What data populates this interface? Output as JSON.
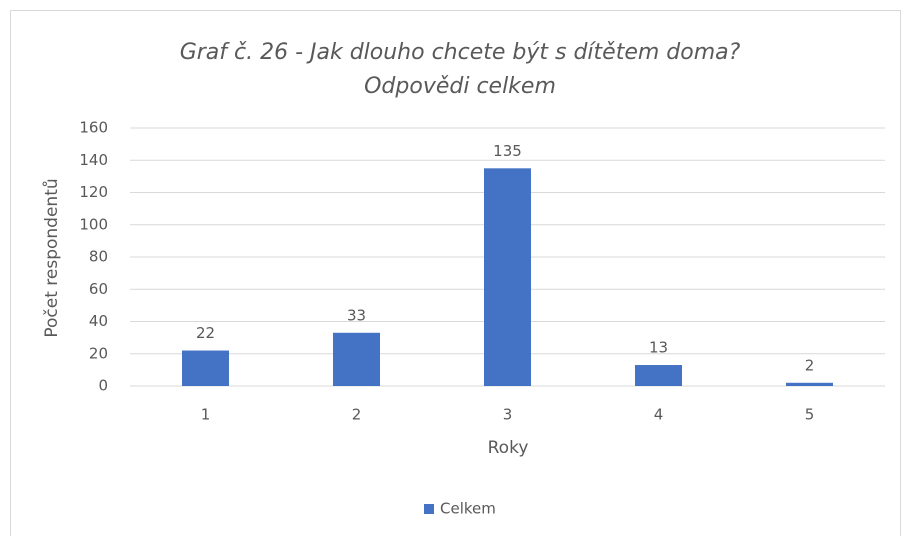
{
  "chart_data": {
    "type": "bar",
    "title": [
      "Graf č. 26 - Jak dlouho chcete být s dítětem doma?",
      "Odpovědi celkem"
    ],
    "x_label": "Roky",
    "y_label": "Počet respondentů",
    "categories": [
      "1",
      "2",
      "3",
      "4",
      "5"
    ],
    "series": [
      {
        "name": "Celkem",
        "color": "#4472c4",
        "values": [
          22,
          33,
          135,
          13,
          2
        ]
      }
    ],
    "ylim": [
      0,
      160
    ],
    "yticks": [
      0,
      20,
      40,
      60,
      80,
      100,
      120,
      140,
      160
    ],
    "grid": true,
    "legend": "bottom"
  }
}
